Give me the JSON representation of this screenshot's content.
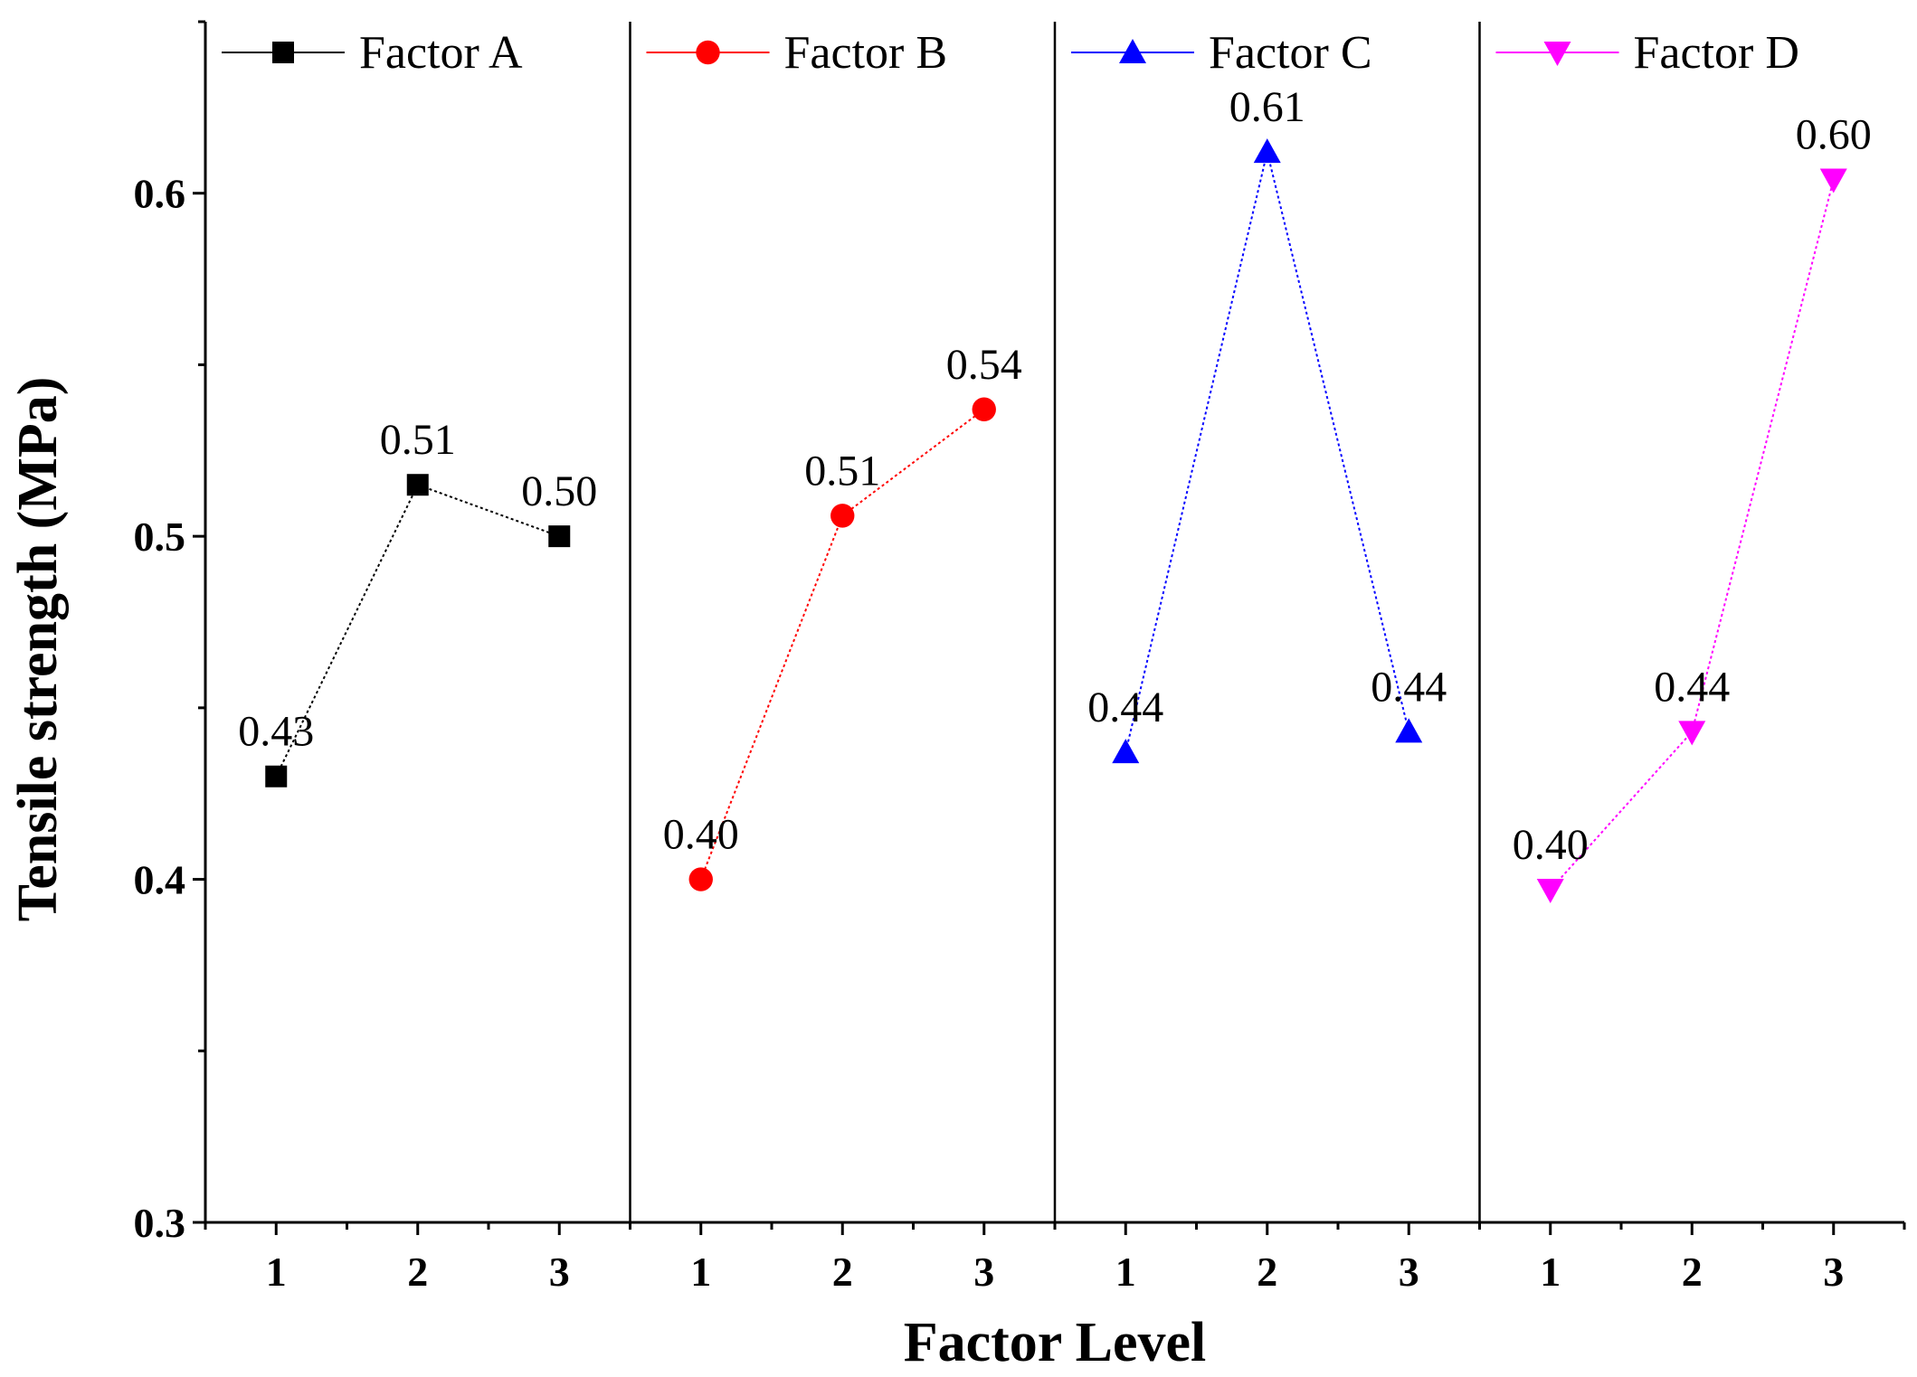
{
  "chart_data": {
    "type": "line",
    "xlabel": "Factor Level",
    "ylabel": "Tensile strength (MPa)",
    "ylim": [
      0.3,
      0.65
    ],
    "yticks": [
      0.3,
      0.4,
      0.5,
      0.6
    ],
    "ytick_labels": [
      "0.3",
      "0.4",
      "0.5",
      "0.6"
    ],
    "x": [
      1,
      2,
      3
    ],
    "xtick_labels": [
      "1",
      "2",
      "3"
    ],
    "legend_position": "top of each panel",
    "series": [
      {
        "name": "Factor A",
        "values": [
          0.43,
          0.515,
          0.5
        ],
        "labels": [
          "0.43",
          "0.51",
          "0.50"
        ],
        "color": "#000000",
        "marker": "square"
      },
      {
        "name": "Factor B",
        "values": [
          0.4,
          0.506,
          0.537
        ],
        "labels": [
          "0.40",
          "0.51",
          "0.54"
        ],
        "color": "#ff0000",
        "marker": "circle"
      },
      {
        "name": "Factor C",
        "values": [
          0.437,
          0.612,
          0.443
        ],
        "labels": [
          "0.44",
          "0.61",
          "0.44"
        ],
        "color": "#0000ff",
        "marker": "triangle-up"
      },
      {
        "name": "Factor D",
        "values": [
          0.397,
          0.443,
          0.604
        ],
        "labels": [
          "0.40",
          "0.44",
          "0.60"
        ],
        "color": "#ff00ff",
        "marker": "triangle-down"
      }
    ]
  }
}
